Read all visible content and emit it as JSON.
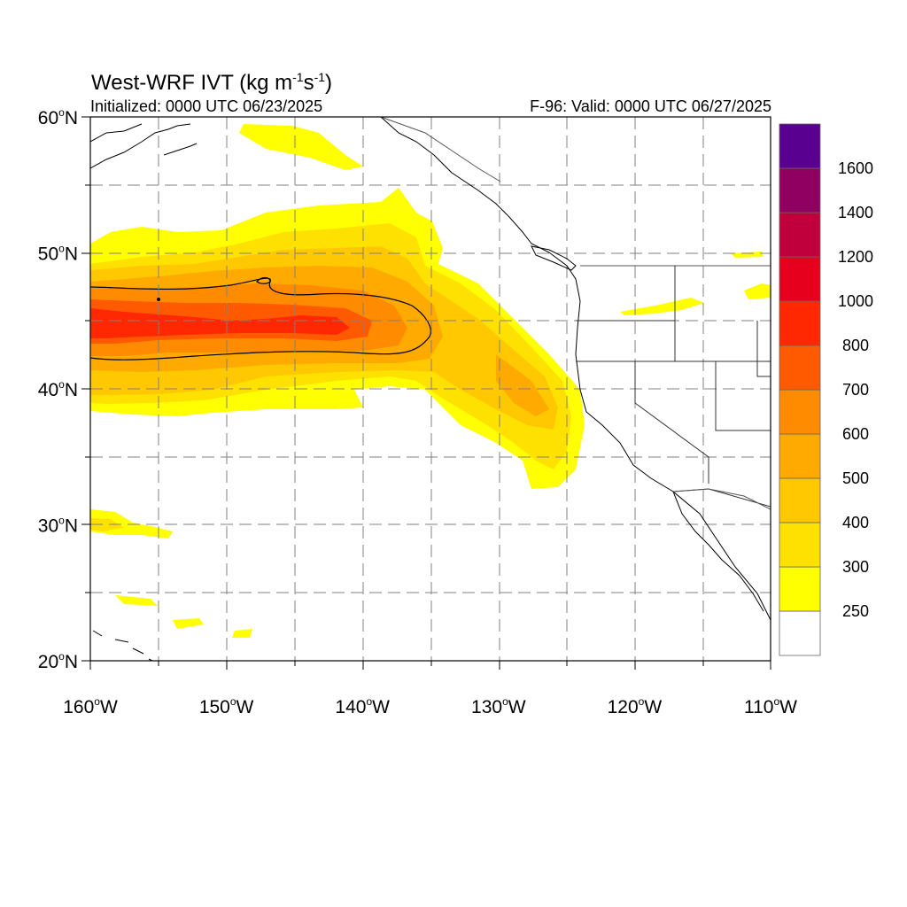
{
  "figure": {
    "title_main": "West-WRF IVT (kg m",
    "title_exp1": "-1",
    "title_mid": "s",
    "title_exp2": "-1",
    "title_end": ")",
    "initialized": "Initialized: 0000 UTC 06/23/2025",
    "valid": "F-96: Valid: 0000 UTC 06/27/2025"
  },
  "map": {
    "lat_labels": [
      {
        "deg": "60",
        "hemi": "N",
        "lat": 60
      },
      {
        "deg": "50",
        "hemi": "N",
        "lat": 50
      },
      {
        "deg": "40",
        "hemi": "N",
        "lat": 40
      },
      {
        "deg": "30",
        "hemi": "N",
        "lat": 30
      },
      {
        "deg": "20",
        "hemi": "N",
        "lat": 20
      }
    ],
    "lon_labels": [
      {
        "deg": "160",
        "hemi": "W",
        "lon": -160
      },
      {
        "deg": "150",
        "hemi": "W",
        "lon": -150
      },
      {
        "deg": "140",
        "hemi": "W",
        "lon": -140
      },
      {
        "deg": "130",
        "hemi": "W",
        "lon": -130
      },
      {
        "deg": "120",
        "hemi": "W",
        "lon": -120
      },
      {
        "deg": "110",
        "hemi": "W",
        "lon": -110
      }
    ],
    "extent": {
      "lon_min": -160,
      "lon_max": -110,
      "lat_min": 20,
      "lat_max": 60
    },
    "grid": "dashed every 5 degrees"
  },
  "colorbar": {
    "levels": [
      "250",
      "300",
      "400",
      "500",
      "600",
      "700",
      "800",
      "1000",
      "1200",
      "1400",
      "1600"
    ],
    "colors": [
      "#ffffff",
      "#ffff00",
      "#ffe100",
      "#ffc800",
      "#ffaa00",
      "#ff8c00",
      "#ff5a00",
      "#ff2800",
      "#e6001e",
      "#c0003c",
      "#900060",
      "#5a0090"
    ]
  }
}
